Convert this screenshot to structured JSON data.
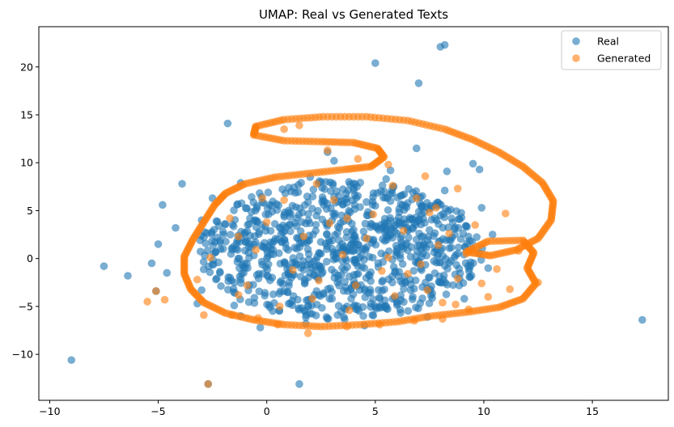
{
  "chart_data": {
    "type": "scatter",
    "title": "UMAP: Real vs Generated Texts",
    "xlabel": "",
    "ylabel": "",
    "xlim": [
      -10.5,
      18.5
    ],
    "ylim": [
      -14.8,
      24.2
    ],
    "x_ticks": [
      -10,
      -5,
      0,
      5,
      10,
      15
    ],
    "y_ticks": [
      -10,
      -5,
      0,
      5,
      10,
      15,
      20
    ],
    "grid": false,
    "legend_position": "top-right",
    "series": [
      {
        "name": "Real",
        "color": "#1f77b4",
        "alpha": 0.6,
        "points": [
          [
            5.0,
            20.4
          ],
          [
            7.0,
            18.3
          ],
          [
            8.0,
            22.1
          ],
          [
            8.2,
            22.3
          ],
          [
            -1.8,
            14.1
          ],
          [
            6.9,
            11.5
          ],
          [
            8.3,
            9.1
          ],
          [
            9.5,
            9.9
          ],
          [
            9.8,
            9.3
          ],
          [
            -3.9,
            7.8
          ],
          [
            -4.8,
            5.6
          ],
          [
            -7.5,
            -0.8
          ],
          [
            -6.4,
            -1.8
          ],
          [
            -9.0,
            -10.6
          ],
          [
            1.5,
            -13.1
          ],
          [
            -2.7,
            -13.1
          ],
          [
            17.3,
            -6.4
          ],
          [
            -5.1,
            -3.4
          ],
          [
            -5.3,
            -0.5
          ],
          [
            -0.3,
            -7.2
          ],
          [
            -3.2,
            -4.7
          ],
          [
            -1.5,
            -4.9
          ],
          [
            2.8,
            11.1
          ],
          [
            3.1,
            10.2
          ],
          [
            5.7,
            9.2
          ],
          [
            -2.5,
            6.3
          ],
          [
            -3.0,
            4.0
          ],
          [
            -4.2,
            3.2
          ],
          [
            -5.0,
            1.5
          ],
          [
            -4.6,
            -1.5
          ],
          [
            -3.0,
            -3.3
          ],
          [
            -1.2,
            -6.0
          ],
          [
            1.8,
            -6.8
          ],
          [
            4.5,
            -7.0
          ],
          [
            7.4,
            -6.1
          ],
          [
            9.1,
            -4.2
          ],
          [
            10.2,
            -1.0
          ],
          [
            10.4,
            2.5
          ],
          [
            9.9,
            5.3
          ],
          [
            8.2,
            7.1
          ],
          [
            5.5,
            8.3
          ],
          [
            2.0,
            8.5
          ],
          [
            -1.2,
            7.9
          ],
          [
            0.5,
            2.0
          ],
          [
            2.5,
            0.5
          ],
          [
            4.0,
            3.0
          ],
          [
            6.0,
            1.0
          ],
          [
            7.5,
            -2.0
          ],
          [
            3.0,
            -3.5
          ],
          [
            -1.0,
            -1.0
          ],
          [
            1.0,
            5.0
          ],
          [
            5.0,
            5.5
          ],
          [
            7.0,
            4.0
          ],
          [
            -2.0,
            2.5
          ],
          [
            8.8,
            0.5
          ]
        ]
      },
      {
        "name": "Generated",
        "color": "#ff7f0e",
        "alpha": 0.6,
        "points": [
          [
            -5.5,
            -4.5
          ],
          [
            -5.1,
            -3.4
          ],
          [
            -4.7,
            -4.3
          ],
          [
            -2.7,
            -13.1
          ],
          [
            -2.9,
            -5.9
          ],
          [
            -1.6,
            -5.9
          ],
          [
            0.8,
            13.5
          ],
          [
            1.5,
            13.9
          ],
          [
            2.8,
            11.3
          ],
          [
            4.2,
            10.4
          ],
          [
            5.6,
            9.8
          ],
          [
            7.3,
            8.6
          ],
          [
            8.8,
            7.3
          ],
          [
            11.0,
            4.7
          ],
          [
            9.6,
            3.5
          ],
          [
            11.6,
            0.8
          ],
          [
            12.5,
            -2.5
          ],
          [
            11.2,
            -3.2
          ],
          [
            10.2,
            -4.0
          ],
          [
            9.3,
            -5.3
          ],
          [
            8.1,
            -6.3
          ],
          [
            6.8,
            -6.5
          ],
          [
            5.2,
            -6.9
          ],
          [
            3.7,
            -7.1
          ],
          [
            1.9,
            -7.8
          ],
          [
            0.5,
            -6.9
          ],
          [
            -0.4,
            -6.2
          ],
          [
            0.6,
            -5.0
          ],
          [
            -1.3,
            -3.8
          ],
          [
            -3.2,
            -2.2
          ],
          [
            -2.6,
            0.1
          ],
          [
            -1.3,
            2.3
          ],
          [
            0.0,
            3.8
          ],
          [
            0.8,
            6.1
          ],
          [
            2.3,
            7.8
          ],
          [
            3.1,
            6.1
          ],
          [
            3.7,
            4.2
          ],
          [
            4.6,
            2.1
          ],
          [
            5.6,
            0.1
          ],
          [
            6.5,
            -1.6
          ],
          [
            7.4,
            -3.3
          ],
          [
            8.1,
            -4.6
          ],
          [
            8.8,
            -2.1
          ],
          [
            9.2,
            0.5
          ],
          [
            8.4,
            2.6
          ],
          [
            7.5,
            4.8
          ],
          [
            6.9,
            6.3
          ],
          [
            5.8,
            7.6
          ],
          [
            1.7,
            2.3
          ],
          [
            2.4,
            -2.3
          ],
          [
            4.1,
            -2.8
          ],
          [
            5.9,
            -3.9
          ],
          [
            7.1,
            -0.6
          ],
          [
            2.9,
            3.7
          ],
          [
            -0.5,
            0.9
          ],
          [
            4.9,
            4.6
          ],
          [
            7.9,
            1.4
          ],
          [
            6.3,
            2.9
          ],
          [
            3.5,
            0.4
          ],
          [
            1.2,
            -1.2
          ],
          [
            -0.9,
            -2.8
          ],
          [
            9.9,
            -2.6
          ],
          [
            10.6,
            -1.1
          ],
          [
            8.7,
            -4.8
          ],
          [
            3.8,
            -5.4
          ],
          [
            2.1,
            -4.2
          ],
          [
            -0.2,
            6.3
          ],
          [
            -1.7,
            4.2
          ],
          [
            5.3,
            -1.3
          ],
          [
            7.8,
            5.3
          ]
        ],
        "curve": [
          [
            -2.4,
            5.6
          ],
          [
            -1.9,
            6.8
          ],
          [
            -1.0,
            7.8
          ],
          [
            0.4,
            8.5
          ],
          [
            2.0,
            8.9
          ],
          [
            3.6,
            9.3
          ],
          [
            4.8,
            9.6
          ],
          [
            5.4,
            10.6
          ],
          [
            5.1,
            11.5
          ],
          [
            4.0,
            12.1
          ],
          [
            2.5,
            12.2
          ],
          [
            0.8,
            12.3
          ],
          [
            -0.6,
            12.9
          ],
          [
            -0.5,
            13.8
          ],
          [
            0.8,
            14.5
          ],
          [
            2.6,
            14.8
          ],
          [
            4.6,
            14.8
          ],
          [
            6.5,
            14.4
          ],
          [
            8.2,
            13.5
          ],
          [
            9.5,
            12.4
          ],
          [
            10.7,
            11.1
          ],
          [
            11.8,
            9.6
          ],
          [
            12.7,
            7.9
          ],
          [
            13.2,
            6.0
          ],
          [
            13.1,
            4.0
          ],
          [
            12.5,
            2.1
          ],
          [
            11.5,
            0.9
          ],
          [
            10.3,
            0.3
          ],
          [
            9.2,
            0.7
          ],
          [
            10.2,
            1.8
          ],
          [
            11.8,
            1.9
          ],
          [
            12.3,
            0.6
          ],
          [
            12.0,
            -1.0
          ],
          [
            12.4,
            -2.6
          ],
          [
            11.8,
            -4.2
          ],
          [
            10.7,
            -5.1
          ],
          [
            9.2,
            -5.6
          ],
          [
            7.6,
            -6.0
          ],
          [
            6.0,
            -6.6
          ],
          [
            4.3,
            -6.9
          ],
          [
            2.5,
            -7.1
          ],
          [
            0.8,
            -6.9
          ],
          [
            -0.6,
            -6.4
          ],
          [
            -1.9,
            -5.7
          ],
          [
            -2.9,
            -4.6
          ],
          [
            -3.5,
            -3.2
          ],
          [
            -3.8,
            -1.6
          ],
          [
            -3.8,
            0.2
          ],
          [
            -3.4,
            2.0
          ],
          [
            -2.9,
            3.8
          ],
          [
            -2.4,
            5.6
          ]
        ]
      }
    ]
  }
}
